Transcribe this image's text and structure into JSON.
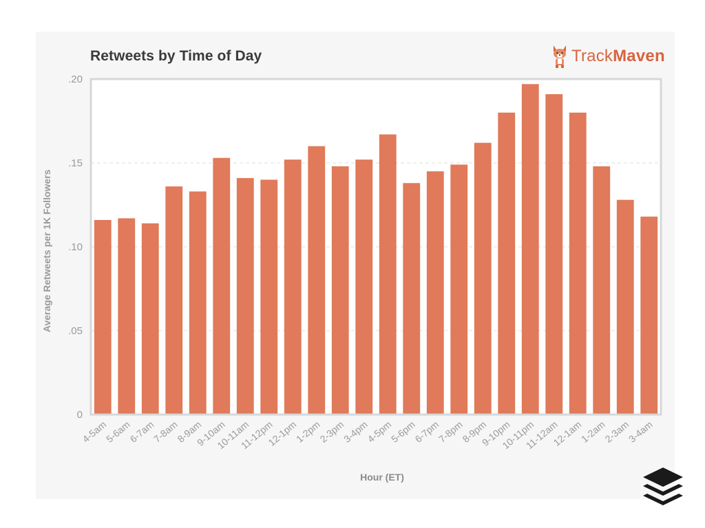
{
  "chart_data": {
    "type": "bar",
    "title": "Retweets by Time of Day",
    "xlabel": "Hour (ET)",
    "ylabel": "Average Retweets per 1K Followers",
    "ylim": [
      0,
      0.2
    ],
    "yticks": [
      {
        "value": 0,
        "label": "0"
      },
      {
        "value": 0.05,
        "label": ".05"
      },
      {
        "value": 0.1,
        "label": ".10"
      },
      {
        "value": 0.15,
        "label": ".15"
      },
      {
        "value": 0.2,
        "label": ".20"
      }
    ],
    "grid": true,
    "bar_color": "#e07a5a",
    "categories": [
      "4-5am",
      "5-6am",
      "6-7am",
      "7-8am",
      "8-9am",
      "9-10am",
      "10-11am",
      "11-12pm",
      "12-1pm",
      "1-2pm",
      "2-3pm",
      "3-4pm",
      "4-5pm",
      "5-6pm",
      "6-7pm",
      "7-8pm",
      "8-9pm",
      "9-10pm",
      "10-11pm",
      "11-12am",
      "12-1am",
      "1-2am",
      "2-3am",
      "3-4am"
    ],
    "values": [
      0.116,
      0.117,
      0.114,
      0.136,
      0.133,
      0.153,
      0.141,
      0.14,
      0.152,
      0.16,
      0.148,
      0.152,
      0.167,
      0.138,
      0.145,
      0.149,
      0.162,
      0.18,
      0.197,
      0.191,
      0.18,
      0.148,
      0.128,
      0.118
    ]
  },
  "branding": {
    "brand_left": "Track",
    "brand_right": "Maven",
    "brand_color": "#d9643f",
    "logo_icon": "corgi-icon",
    "watermark_icon": "buffer-stack-icon"
  }
}
